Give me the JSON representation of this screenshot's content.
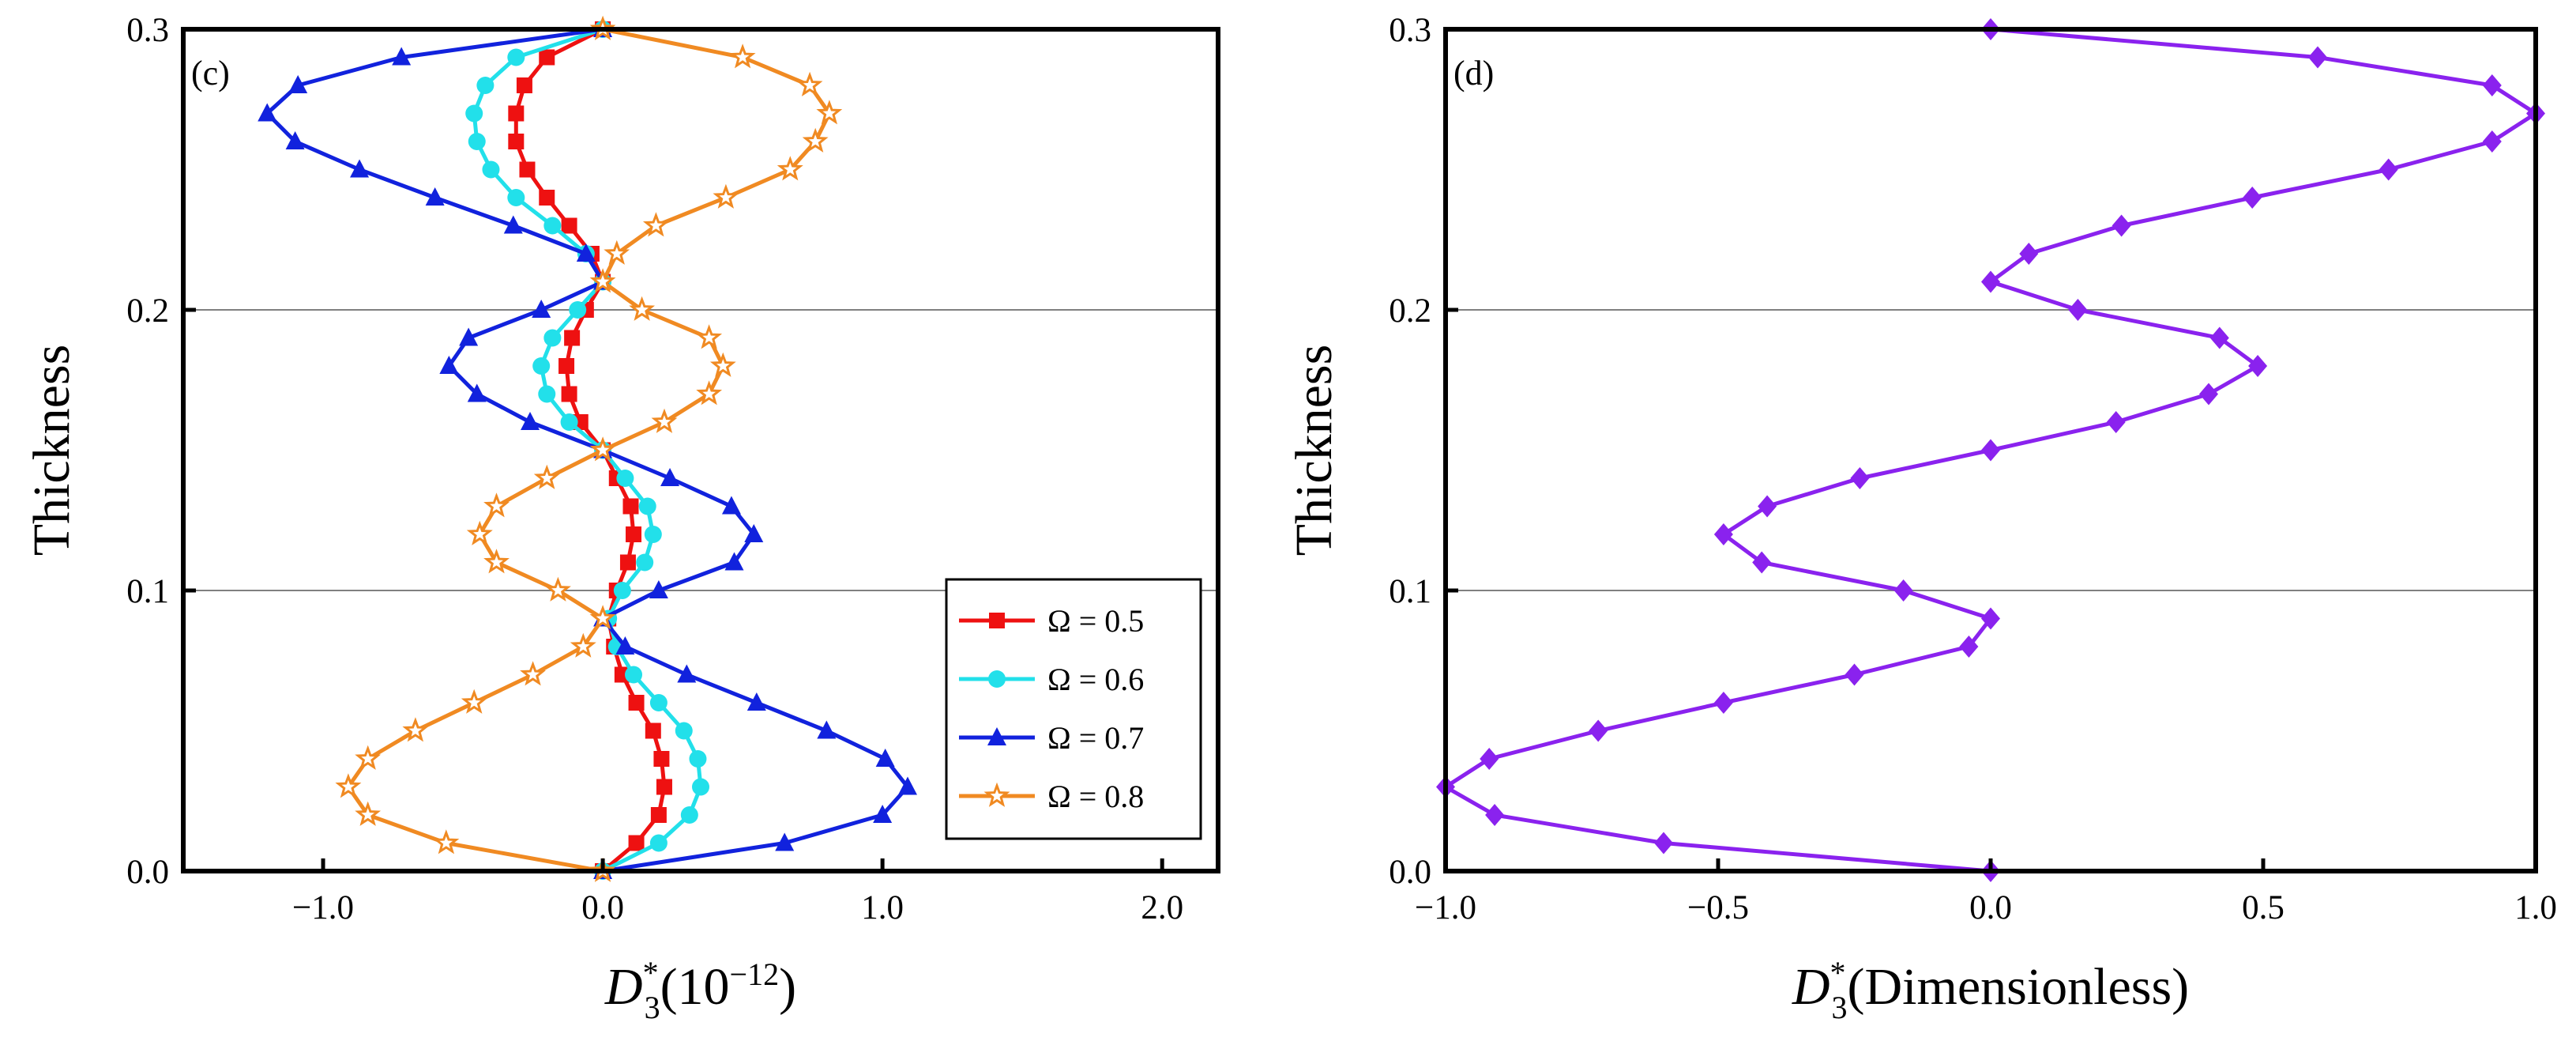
{
  "chart_data": [
    {
      "type": "line",
      "panel_label": "(c)",
      "xlabel": {
        "symbol": "D",
        "superscript": "*",
        "subscript": "3",
        "suffix": "(10",
        "suffix_exp": "−12",
        "suffix_close": ")"
      },
      "ylabel": "Thickness",
      "xlim": [
        -1.5,
        2.2
      ],
      "ylim": [
        0.0,
        0.3
      ],
      "xticks": [
        -1.0,
        0.0,
        1.0,
        2.0
      ],
      "xtick_labels": [
        "−1.0",
        "0.0",
        "1.0",
        "2.0"
      ],
      "yticks": [
        0.0,
        0.1,
        0.2,
        0.3
      ],
      "ytick_labels": [
        "0.0",
        "0.1",
        "0.2",
        "0.3"
      ],
      "grid": "horizontal",
      "legend_position": "bottom-right",
      "series": [
        {
          "name": "Ω = 0.5",
          "color": "#ee1111",
          "marker": "square",
          "y": [
            0.0,
            0.01,
            0.02,
            0.03,
            0.04,
            0.05,
            0.06,
            0.07,
            0.08,
            0.09,
            0.1,
            0.11,
            0.12,
            0.13,
            0.14,
            0.15,
            0.16,
            0.17,
            0.18,
            0.19,
            0.2,
            0.21,
            0.22,
            0.23,
            0.24,
            0.25,
            0.26,
            0.27,
            0.28,
            0.29,
            0.3
          ],
          "x": [
            0.0,
            0.12,
            0.2,
            0.22,
            0.21,
            0.18,
            0.12,
            0.07,
            0.04,
            0.02,
            0.05,
            0.09,
            0.11,
            0.1,
            0.05,
            0.0,
            -0.08,
            -0.12,
            -0.13,
            -0.11,
            -0.06,
            0.0,
            -0.04,
            -0.12,
            -0.2,
            -0.27,
            -0.31,
            -0.31,
            -0.28,
            -0.2,
            0.0
          ]
        },
        {
          "name": "Ω = 0.6",
          "color": "#22e0ea",
          "marker": "circle",
          "y": [
            0.0,
            0.01,
            0.02,
            0.03,
            0.04,
            0.05,
            0.06,
            0.07,
            0.08,
            0.09,
            0.1,
            0.11,
            0.12,
            0.13,
            0.14,
            0.15,
            0.16,
            0.17,
            0.18,
            0.19,
            0.2,
            0.21,
            0.22,
            0.23,
            0.24,
            0.25,
            0.26,
            0.27,
            0.28,
            0.29,
            0.3
          ],
          "x": [
            0.0,
            0.2,
            0.31,
            0.35,
            0.34,
            0.29,
            0.2,
            0.11,
            0.05,
            0.02,
            0.07,
            0.15,
            0.18,
            0.16,
            0.08,
            0.0,
            -0.12,
            -0.2,
            -0.22,
            -0.18,
            -0.09,
            0.0,
            -0.06,
            -0.18,
            -0.31,
            -0.4,
            -0.45,
            -0.46,
            -0.42,
            -0.31,
            0.0
          ]
        },
        {
          "name": "Ω = 0.7",
          "color": "#1122dd",
          "marker": "triangle",
          "y": [
            0.0,
            0.01,
            0.02,
            0.03,
            0.04,
            0.05,
            0.06,
            0.07,
            0.08,
            0.09,
            0.1,
            0.11,
            0.12,
            0.13,
            0.14,
            0.15,
            0.16,
            0.17,
            0.18,
            0.19,
            0.2,
            0.21,
            0.22,
            0.23,
            0.24,
            0.25,
            0.26,
            0.27,
            0.28,
            0.29,
            0.3
          ],
          "x": [
            0.0,
            0.65,
            1.0,
            1.09,
            1.01,
            0.8,
            0.55,
            0.3,
            0.08,
            0.0,
            0.2,
            0.47,
            0.54,
            0.46,
            0.24,
            0.0,
            -0.26,
            -0.45,
            -0.55,
            -0.48,
            -0.22,
            0.0,
            -0.06,
            -0.32,
            -0.6,
            -0.87,
            -1.1,
            -1.2,
            -1.09,
            -0.72,
            0.0
          ]
        },
        {
          "name": "Ω = 0.8",
          "color": "#f08a22",
          "marker": "star",
          "y": [
            0.0,
            0.01,
            0.02,
            0.03,
            0.04,
            0.05,
            0.06,
            0.07,
            0.08,
            0.09,
            0.1,
            0.11,
            0.12,
            0.13,
            0.14,
            0.15,
            0.16,
            0.17,
            0.18,
            0.19,
            0.2,
            0.21,
            0.22,
            0.23,
            0.24,
            0.25,
            0.26,
            0.27,
            0.28,
            0.29,
            0.3
          ],
          "x": [
            0.0,
            -0.56,
            -0.84,
            -0.91,
            -0.84,
            -0.67,
            -0.46,
            -0.25,
            -0.07,
            0.0,
            -0.16,
            -0.38,
            -0.44,
            -0.38,
            -0.2,
            0.0,
            0.22,
            0.38,
            0.43,
            0.38,
            0.14,
            0.0,
            0.05,
            0.19,
            0.44,
            0.67,
            0.76,
            0.81,
            0.74,
            0.5,
            0.0
          ]
        }
      ]
    },
    {
      "type": "line",
      "panel_label": "(d)",
      "xlabel": {
        "symbol": "D",
        "superscript": "*",
        "subscript": "3",
        "suffix": "(Dimensionless)"
      },
      "ylabel": "Thickness",
      "xlim": [
        -1.0,
        1.0
      ],
      "ylim": [
        0.0,
        0.3
      ],
      "xticks": [
        -1.0,
        -0.5,
        0.0,
        0.5,
        1.0
      ],
      "xtick_labels": [
        "−1.0",
        "−0.5",
        "0.0",
        "0.5",
        "1.0"
      ],
      "yticks": [
        0.0,
        0.1,
        0.2,
        0.3
      ],
      "ytick_labels": [
        "0.0",
        "0.1",
        "0.2",
        "0.3"
      ],
      "grid": "horizontal",
      "series": [
        {
          "name": "D3*",
          "color": "#8a22ee",
          "marker": "diamond",
          "y": [
            0.0,
            0.01,
            0.02,
            0.03,
            0.04,
            0.05,
            0.06,
            0.07,
            0.08,
            0.09,
            0.1,
            0.11,
            0.12,
            0.13,
            0.14,
            0.15,
            0.16,
            0.17,
            0.18,
            0.19,
            0.2,
            0.21,
            0.22,
            0.23,
            0.24,
            0.25,
            0.26,
            0.27,
            0.28,
            0.29,
            0.3
          ],
          "x": [
            0.0,
            -0.6,
            -0.91,
            -1.0,
            -0.92,
            -0.72,
            -0.49,
            -0.25,
            -0.04,
            0.0,
            -0.16,
            -0.42,
            -0.49,
            -0.41,
            -0.24,
            0.0,
            0.23,
            0.4,
            0.49,
            0.42,
            0.16,
            0.0,
            0.07,
            0.24,
            0.48,
            0.73,
            0.92,
            1.0,
            0.92,
            0.6,
            0.0
          ]
        }
      ]
    }
  ]
}
